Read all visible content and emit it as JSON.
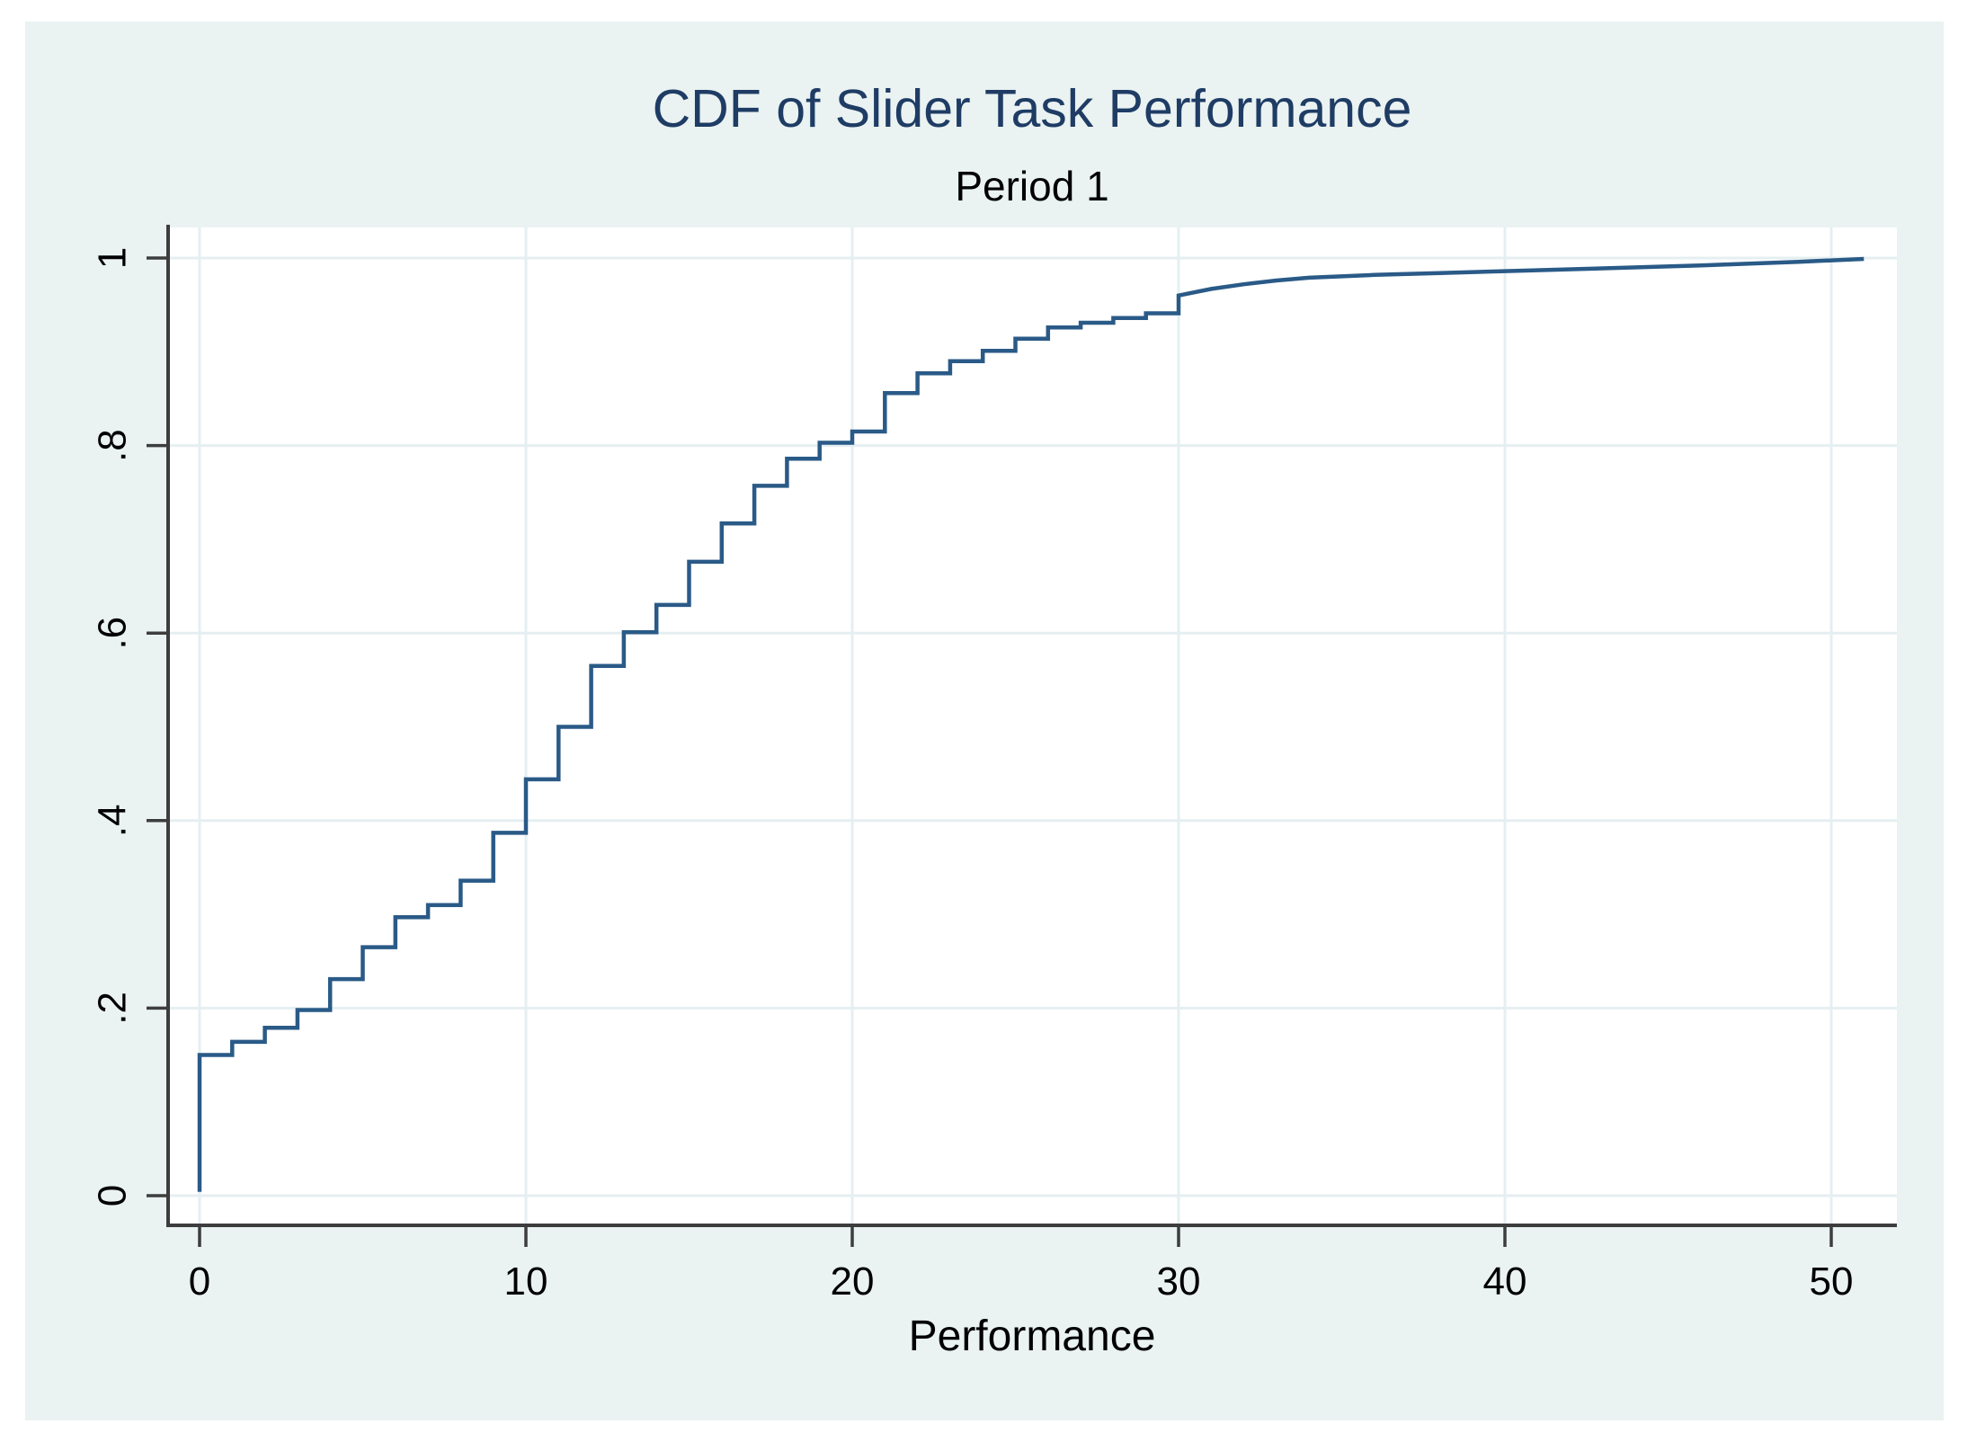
{
  "figure": {
    "page_bg": "#ffffff",
    "canvas_color": "#eaf2f2",
    "plot_bg": "#ffffff",
    "grid_color": "#e5eff1",
    "axis_color": "#3d3d3d",
    "tick_color": "#3d3d3d",
    "line_color": "#2a5a87",
    "title_color": "#1e3c64",
    "text_color": "#000000"
  },
  "chart_data": {
    "type": "line",
    "variant": "empirical-cdf-step",
    "title": "CDF of Slider Task Performance",
    "subtitle": "Period 1",
    "xlabel": "Performance",
    "ylabel": "",
    "legend": "none",
    "grid": true,
    "xlim": [
      -1,
      52
    ],
    "ylim": [
      0,
      1.03
    ],
    "x_ticks": [
      {
        "v": 0,
        "label": "0"
      },
      {
        "v": 10,
        "label": "10"
      },
      {
        "v": 20,
        "label": "20"
      },
      {
        "v": 30,
        "label": "30"
      },
      {
        "v": 40,
        "label": "40"
      },
      {
        "v": 50,
        "label": "50"
      }
    ],
    "y_ticks": [
      {
        "v": 0.0,
        "label": "0"
      },
      {
        "v": 0.2,
        "label": ".2"
      },
      {
        "v": 0.4,
        "label": ".4"
      },
      {
        "v": 0.6,
        "label": ".6"
      },
      {
        "v": 0.8,
        "label": ".8"
      },
      {
        "v": 1.0,
        "label": "1"
      }
    ],
    "cdf_start": [
      0,
      0.004
    ],
    "cdf_steps": [
      [
        0,
        0.15
      ],
      [
        1,
        0.164
      ],
      [
        2,
        0.179
      ],
      [
        3,
        0.198
      ],
      [
        4,
        0.231
      ],
      [
        5,
        0.265
      ],
      [
        6,
        0.297
      ],
      [
        7,
        0.31
      ],
      [
        8,
        0.336
      ],
      [
        9,
        0.387
      ],
      [
        10,
        0.444
      ],
      [
        11,
        0.5
      ],
      [
        12,
        0.565
      ],
      [
        13,
        0.601
      ],
      [
        14,
        0.63
      ],
      [
        15,
        0.676
      ],
      [
        16,
        0.717
      ],
      [
        17,
        0.757
      ],
      [
        18,
        0.786
      ],
      [
        19,
        0.803
      ],
      [
        20,
        0.815
      ],
      [
        21,
        0.856
      ],
      [
        22,
        0.877
      ],
      [
        23,
        0.89
      ],
      [
        24,
        0.901
      ],
      [
        25,
        0.914
      ],
      [
        26,
        0.926
      ],
      [
        27,
        0.931
      ],
      [
        28,
        0.936
      ],
      [
        29,
        0.941
      ],
      [
        30,
        0.96
      ]
    ],
    "cdf_tail": [
      [
        31,
        0.967
      ],
      [
        32,
        0.972
      ],
      [
        33,
        0.976
      ],
      [
        34,
        0.979
      ],
      [
        36,
        0.982
      ],
      [
        38,
        0.984
      ],
      [
        40,
        0.986
      ],
      [
        43,
        0.989
      ],
      [
        46,
        0.992
      ],
      [
        49,
        0.996
      ],
      [
        51,
        0.999
      ]
    ]
  }
}
